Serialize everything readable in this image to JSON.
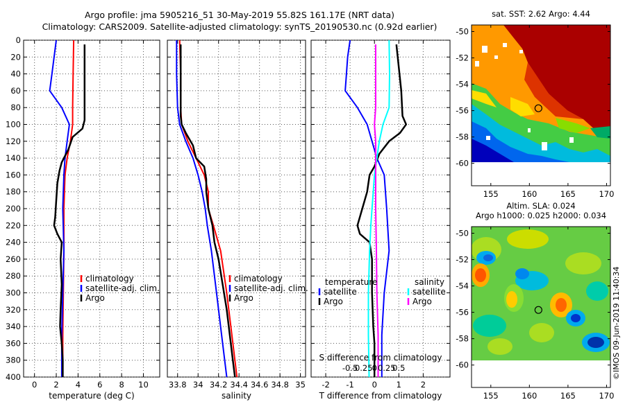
{
  "title_line1": "Argo profile: jma 5905216_51 30-May-2019 55.82S 161.17E (NRT data)",
  "title_line2": "Climatology: CARS2009. Satellite-adjusted climatology: synTS_20190530.nc (0.92d earlier)",
  "credit": "©IMOS 09-Jun-2019 11:40:34",
  "colors": {
    "climatology": "#ff0000",
    "satellite": "#0000ff",
    "argo": "#000000",
    "sat_salinity": "#00ffff",
    "argo_salinity": "#ff00ff"
  },
  "chart_data": [
    {
      "id": "temperature",
      "type": "line",
      "xlabel": "temperature (deg C)",
      "xlim": [
        -1,
        11.5
      ],
      "ylim": [
        0,
        400
      ],
      "xticks": [
        0,
        2,
        4,
        6,
        8,
        10
      ],
      "xtick_labels": [
        "0",
        "2",
        "4",
        "6",
        "8",
        "10"
      ],
      "yticks": [
        0,
        20,
        40,
        60,
        80,
        100,
        120,
        140,
        160,
        180,
        200,
        220,
        240,
        260,
        280,
        300,
        320,
        340,
        360,
        380,
        400
      ],
      "ytick_labels": [
        "0",
        "20",
        "40",
        "60",
        "80",
        "100",
        "120",
        "140",
        "160",
        "180",
        "200",
        "220",
        "240",
        "260",
        "280",
        "300",
        "320",
        "340",
        "360",
        "380",
        "400"
      ],
      "legend": [
        "climatology",
        "satellite-adj. clim.",
        "Argo"
      ],
      "series": [
        {
          "name": "climatology",
          "color": "#ff0000",
          "points": [
            [
              3.6,
              0
            ],
            [
              3.55,
              40
            ],
            [
              3.5,
              80
            ],
            [
              3.5,
              100
            ],
            [
              3.3,
              120
            ],
            [
              3.0,
              140
            ],
            [
              2.8,
              160
            ],
            [
              2.7,
              200
            ],
            [
              2.7,
              250
            ],
            [
              2.65,
              300
            ],
            [
              2.6,
              350
            ],
            [
              2.6,
              400
            ]
          ]
        },
        {
          "name": "satellite-adj. clim.",
          "color": "#0000ff",
          "points": [
            [
              2.0,
              0
            ],
            [
              1.8,
              20
            ],
            [
              1.6,
              40
            ],
            [
              1.4,
              60
            ],
            [
              2.5,
              80
            ],
            [
              3.2,
              100
            ],
            [
              3.0,
              120
            ],
            [
              2.8,
              140
            ],
            [
              2.7,
              160
            ],
            [
              2.6,
              200
            ],
            [
              2.7,
              250
            ],
            [
              2.6,
              300
            ],
            [
              2.5,
              350
            ],
            [
              2.5,
              400
            ]
          ]
        },
        {
          "name": "Argo",
          "color": "#000000",
          "points": [
            [
              4.6,
              5
            ],
            [
              4.6,
              95
            ],
            [
              4.4,
              105
            ],
            [
              3.5,
              115
            ],
            [
              3.1,
              130
            ],
            [
              2.5,
              145
            ],
            [
              2.3,
              155
            ],
            [
              2.1,
              170
            ],
            [
              2.0,
              190
            ],
            [
              1.9,
              210
            ],
            [
              1.8,
              220
            ],
            [
              2.1,
              230
            ],
            [
              2.5,
              240
            ],
            [
              2.4,
              260
            ],
            [
              2.5,
              290
            ],
            [
              2.4,
              320
            ],
            [
              2.35,
              340
            ],
            [
              2.5,
              360
            ],
            [
              2.6,
              380
            ],
            [
              2.6,
              400
            ]
          ]
        }
      ]
    },
    {
      "id": "salinity",
      "type": "line",
      "xlabel": "salinity",
      "xlim": [
        33.7,
        35.05
      ],
      "ylim": [
        0,
        400
      ],
      "xticks": [
        33.8,
        34,
        34.2,
        34.4,
        34.6,
        34.8,
        35
      ],
      "xtick_labels": [
        "33.8",
        "34",
        "34.2",
        "34.4",
        "34.6",
        "34.8",
        "35"
      ],
      "legend": [
        "climatology",
        "satellite-adj. clim.",
        "Argo"
      ],
      "series": [
        {
          "name": "climatology",
          "color": "#ff0000",
          "points": [
            [
              33.82,
              0
            ],
            [
              33.83,
              40
            ],
            [
              33.83,
              80
            ],
            [
              33.84,
              100
            ],
            [
              33.9,
              120
            ],
            [
              33.98,
              140
            ],
            [
              34.06,
              160
            ],
            [
              34.1,
              180
            ],
            [
              34.1,
              200
            ],
            [
              34.15,
              220
            ],
            [
              34.22,
              250
            ],
            [
              34.28,
              300
            ],
            [
              34.33,
              350
            ],
            [
              34.38,
              400
            ]
          ]
        },
        {
          "name": "satellite-adj. clim.",
          "color": "#0000ff",
          "points": [
            [
              33.79,
              0
            ],
            [
              33.79,
              40
            ],
            [
              33.8,
              80
            ],
            [
              33.82,
              100
            ],
            [
              33.88,
              120
            ],
            [
              33.95,
              140
            ],
            [
              34.0,
              160
            ],
            [
              34.04,
              180
            ],
            [
              34.07,
              200
            ],
            [
              34.09,
              220
            ],
            [
              34.13,
              250
            ],
            [
              34.18,
              300
            ],
            [
              34.23,
              350
            ],
            [
              34.28,
              400
            ]
          ]
        },
        {
          "name": "Argo",
          "color": "#000000",
          "points": [
            [
              33.83,
              5
            ],
            [
              33.83,
              90
            ],
            [
              33.84,
              100
            ],
            [
              33.88,
              110
            ],
            [
              33.95,
              125
            ],
            [
              33.98,
              140
            ],
            [
              34.06,
              150
            ],
            [
              34.08,
              165
            ],
            [
              34.08,
              180
            ],
            [
              34.1,
              200
            ],
            [
              34.14,
              220
            ],
            [
              34.16,
              240
            ],
            [
              34.2,
              260
            ],
            [
              34.24,
              290
            ],
            [
              34.28,
              320
            ],
            [
              34.31,
              350
            ],
            [
              34.34,
              380
            ],
            [
              34.36,
              400
            ]
          ]
        }
      ]
    },
    {
      "id": "difference",
      "type": "line",
      "xlabel": "T difference from climatology",
      "secondary_xlabel": "S difference from climatology",
      "xlim": [
        -2.6,
        3.1
      ],
      "ylim": [
        0,
        400
      ],
      "xticks": [
        -2,
        -1,
        0,
        1,
        2
      ],
      "xtick_labels": [
        "-2",
        "-1",
        "0",
        "1",
        "2"
      ],
      "secondary_xticks": [
        -1,
        -0.5,
        0,
        0.5,
        1
      ],
      "secondary_xtick_labels": [
        "-0.5",
        "-0.25",
        "0",
        "0.25",
        "0.5"
      ],
      "legend_temperature_title": "temperature",
      "legend_temperature": [
        "satellite",
        "Argo"
      ],
      "legend_salinity_title": "salinity",
      "legend_salinity": [
        "satellite",
        "Argo"
      ],
      "series": [
        {
          "name": "T satellite",
          "color": "#0000ff",
          "points": [
            [
              -1.0,
              0
            ],
            [
              -1.1,
              20
            ],
            [
              -1.15,
              40
            ],
            [
              -1.2,
              60
            ],
            [
              -0.7,
              80
            ],
            [
              -0.3,
              100
            ],
            [
              -0.1,
              120
            ],
            [
              0.1,
              140
            ],
            [
              0.4,
              160
            ],
            [
              0.5,
              200
            ],
            [
              0.6,
              250
            ],
            [
              0.4,
              300
            ],
            [
              0.3,
              350
            ],
            [
              0.3,
              400
            ]
          ]
        },
        {
          "name": "T Argo",
          "color": "#000000",
          "points": [
            [
              0.9,
              5
            ],
            [
              1.1,
              60
            ],
            [
              1.15,
              90
            ],
            [
              1.3,
              100
            ],
            [
              1.05,
              110
            ],
            [
              0.6,
              120
            ],
            [
              0.2,
              135
            ],
            [
              0.0,
              150
            ],
            [
              -0.2,
              160
            ],
            [
              -0.3,
              180
            ],
            [
              -0.5,
              200
            ],
            [
              -0.7,
              220
            ],
            [
              -0.6,
              230
            ],
            [
              -0.2,
              240
            ],
            [
              -0.1,
              260
            ],
            [
              -0.1,
              300
            ],
            [
              -0.05,
              340
            ],
            [
              0.0,
              360
            ],
            [
              0.0,
              380
            ],
            [
              0.0,
              400
            ]
          ]
        },
        {
          "name": "S satellite",
          "color": "#00ffff",
          "points": [
            [
              0.6,
              0
            ],
            [
              0.62,
              40
            ],
            [
              0.6,
              80
            ],
            [
              0.35,
              100
            ],
            [
              0.2,
              120
            ],
            [
              0.1,
              140
            ],
            [
              0.0,
              160
            ],
            [
              -0.05,
              180
            ],
            [
              -0.1,
              200
            ],
            [
              -0.15,
              220
            ],
            [
              -0.2,
              250
            ],
            [
              -0.25,
              300
            ],
            [
              -0.25,
              350
            ],
            [
              -0.22,
              400
            ]
          ]
        },
        {
          "name": "S Argo",
          "color": "#ff00ff",
          "points": [
            [
              0.05,
              5
            ],
            [
              0.05,
              80
            ],
            [
              0.0,
              100
            ],
            [
              0.05,
              120
            ],
            [
              0.05,
              160
            ],
            [
              0.05,
              200
            ],
            [
              0.08,
              250
            ],
            [
              0.1,
              300
            ],
            [
              0.15,
              350
            ],
            [
              0.15,
              400
            ]
          ]
        }
      ]
    },
    {
      "id": "sst_map",
      "type": "heatmap",
      "title": "sat. SST: 2.62 Argo: 4.44",
      "xlim": [
        152.5,
        170.5
      ],
      "ylim": [
        -61.7,
        -49.5
      ],
      "xticks": [
        155,
        160,
        165,
        170
      ],
      "xtick_labels": [
        "155",
        "160",
        "165",
        "170"
      ],
      "yticks": [
        -50,
        -52,
        -54,
        -56,
        -58,
        -60
      ],
      "ytick_labels": [
        "-50",
        "-52",
        "-54",
        "-56",
        "-58",
        "-60"
      ],
      "argo_position": [
        161.17,
        -55.82
      ]
    },
    {
      "id": "sla_map",
      "type": "heatmap",
      "title_line1": "Altim. SLA: 0.024",
      "title_line2": "Argo h1000: 0.025 h2000: 0.034",
      "xlim": [
        152.5,
        170.5
      ],
      "ylim": [
        -61.7,
        -49.5
      ],
      "xticks": [
        155,
        160,
        165,
        170
      ],
      "xtick_labels": [
        "155",
        "160",
        "165",
        "170"
      ],
      "yticks": [
        -50,
        -52,
        -54,
        -56,
        -58,
        -60
      ],
      "ytick_labels": [
        "-50",
        "-52",
        "-54",
        "-56",
        "-58",
        "-60"
      ],
      "argo_position": [
        161.17,
        -55.82
      ]
    }
  ]
}
